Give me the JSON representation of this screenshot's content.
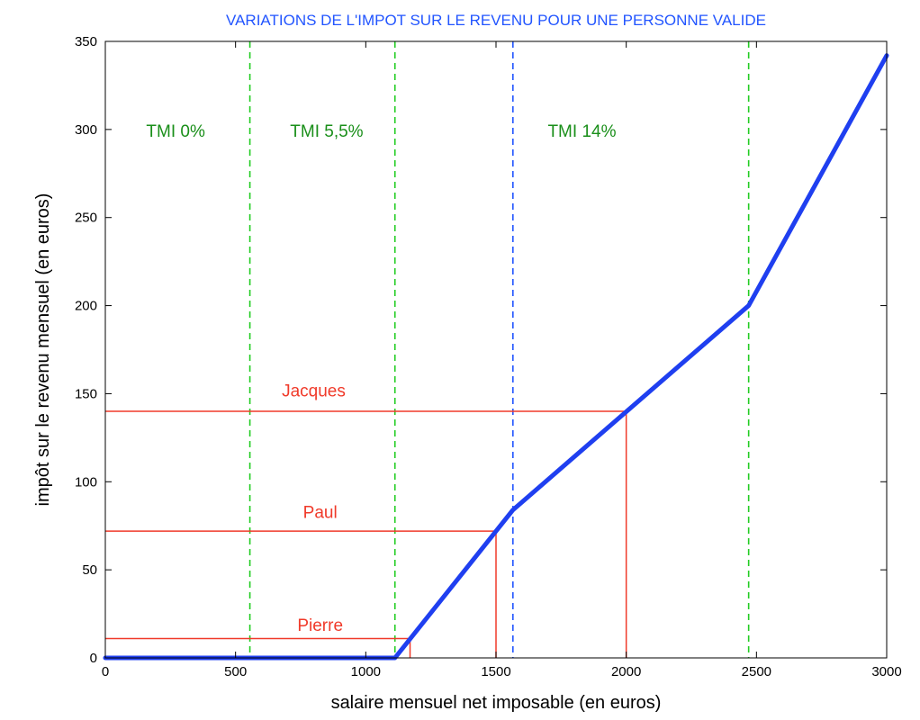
{
  "chart_data": {
    "type": "line",
    "title": "VARIATIONS DE L'IMPOT SUR LE REVENU POUR UNE PERSONNE VALIDE",
    "xlabel": "salaire mensuel net imposable (en euros)",
    "ylabel": "impôt sur le revenu mensuel (en euros)",
    "xlim": [
      0,
      3000
    ],
    "ylim": [
      0,
      350
    ],
    "xticks": [
      0,
      500,
      1000,
      1500,
      2000,
      2500,
      3000
    ],
    "yticks": [
      0,
      50,
      100,
      150,
      200,
      250,
      300,
      350
    ],
    "grid": false,
    "series": [
      {
        "color": "#1f3ff0",
        "x": [
          0,
          1112,
          1565,
          2470,
          3000
        ],
        "y": [
          0,
          0,
          84,
          200,
          342
        ]
      }
    ],
    "vertical_lines": [
      {
        "x": 555,
        "color": "#22cc22"
      },
      {
        "x": 1112,
        "color": "#22cc22"
      },
      {
        "x": 1565,
        "color": "#2255ff"
      },
      {
        "x": 2470,
        "color": "#22cc22"
      }
    ],
    "bracket_labels": [
      {
        "text": "TMI 0%",
        "x": 270,
        "y": 300,
        "color": "#1a8f1a"
      },
      {
        "text": "TMI 5,5%",
        "x": 850,
        "y": 300,
        "color": "#1a8f1a"
      },
      {
        "text": "TMI 14%",
        "x": 1830,
        "y": 300,
        "color": "#1a8f1a"
      }
    ],
    "people": [
      {
        "name": "Pierre",
        "x": 1170,
        "y": 11,
        "label_x": 825,
        "label_y": 19
      },
      {
        "name": "Paul",
        "x": 1500,
        "y": 72,
        "label_x": 825,
        "label_y": 83
      },
      {
        "name": "Jacques",
        "x": 2000,
        "y": 140,
        "label_x": 800,
        "label_y": 152
      }
    ],
    "people_color": "#f03a2a"
  },
  "colors": {
    "title": "#2255ff"
  }
}
